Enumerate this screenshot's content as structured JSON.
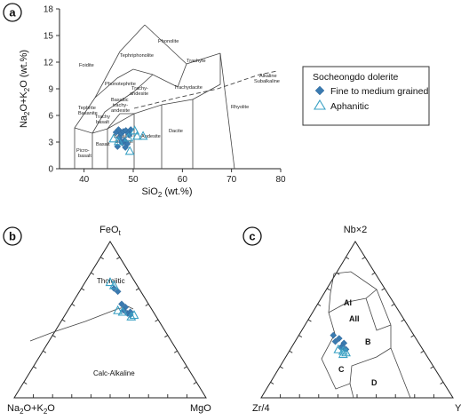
{
  "panels": {
    "a": {
      "badge": "a"
    },
    "b": {
      "badge": "b"
    },
    "c": {
      "badge": "c"
    }
  },
  "legend": {
    "title": "Socheongdo dolerite",
    "items": [
      {
        "label": "Fine to medium grained",
        "marker": "diamond",
        "color": "#3a7ab0"
      },
      {
        "label": "Aphanitic",
        "marker": "open-triangle",
        "color": "#3aa1c4"
      }
    ]
  },
  "tas": {
    "fields": {
      "foidite": "Foidite",
      "phonolite": "Phonolite",
      "tephriphonolite": "Tephriphonolite",
      "phonotephrite": "Phonotephrite",
      "trachyte": "Trachyte",
      "tephrite_1": "Tephrite",
      "tephrite_2": "Basanite",
      "trachyandesite_1": "Trachy-",
      "trachyandesite_2": "andesite",
      "trachydacite": "Trachydacite",
      "basaltic_ta_1": "Basaltic",
      "basaltic_ta_2": "trachy-",
      "basaltic_ta_3": "andesite",
      "trachybasalt_1": "Trachy",
      "trachybasalt_2": "basalt",
      "rhyolite": "Rhyolite",
      "picrobasalt_1": "Picro-",
      "picrobasalt_2": "basalt",
      "basalt": "Basalt",
      "basaltic_andesite_1": "Basaltic-",
      "basaltic_andesite_2": "andesite",
      "andesite": "Andesite",
      "dacite": "Dacite",
      "alkaline": "Alkaline",
      "subalkaline": "Subalkaline"
    }
  },
  "afm": {
    "tholeiitic": "Tholeiitic",
    "calc_alkaline": "Calc-Alkaline"
  },
  "meschede": {
    "AI": "AI",
    "AII": "AII",
    "B": "B",
    "C": "C",
    "D": "D"
  },
  "chart_data": [
    {
      "type": "scatter",
      "title": "",
      "xlabel": "SiO2 (wt.%)",
      "ylabel": "Na2O+K2O (wt.%)",
      "xlim": [
        35,
        80
      ],
      "ylim": [
        0,
        18
      ],
      "xticks": [
        40,
        50,
        60,
        70,
        80
      ],
      "yticks": [
        0,
        3,
        6,
        9,
        12,
        15,
        18
      ],
      "series": [
        {
          "name": "Fine to medium grained",
          "marker": "diamond",
          "x": [
            46.5,
            47.0,
            47.5,
            48.0,
            48.5,
            49.0,
            49.5,
            47.2,
            48.2,
            49.2,
            48.8,
            46.8,
            47.8,
            48.4,
            47.6
          ],
          "y": [
            4.1,
            4.4,
            3.9,
            4.2,
            4.3,
            4.0,
            4.4,
            3.5,
            3.2,
            3.8,
            2.8,
            2.5,
            2.9,
            2.4,
            3.0
          ]
        },
        {
          "name": "Aphanitic",
          "marker": "open-triangle",
          "x": [
            46.0,
            47.0,
            49.0,
            50.3,
            50.8,
            52.0,
            49.3
          ],
          "y": [
            3.4,
            3.1,
            3.5,
            4.3,
            3.7,
            3.7,
            2.0
          ]
        }
      ]
    },
    {
      "type": "scatter",
      "title": "",
      "ternary": true,
      "apices": {
        "top": "FeOt",
        "left": "Na2O+K2O",
        "right": "MgO"
      },
      "series": [
        {
          "name": "Fine to medium grained",
          "marker": "diamond",
          "top": [
            0.7,
            0.68,
            0.6,
            0.58,
            0.56,
            0.54,
            0.55,
            0.53
          ],
          "left": [
            0.13,
            0.12,
            0.14,
            0.13,
            0.15,
            0.14,
            0.12,
            0.13
          ]
        },
        {
          "name": "Aphanitic",
          "marker": "open-triangle",
          "top": [
            0.74,
            0.72,
            0.56,
            0.52,
            0.53,
            0.55
          ],
          "left": [
            0.13,
            0.12,
            0.18,
            0.13,
            0.11,
            0.16
          ]
        }
      ]
    },
    {
      "type": "scatter",
      "title": "",
      "ternary": true,
      "apices": {
        "top": "Nb×2",
        "left": "Zr/4",
        "right": "Y"
      },
      "series": [
        {
          "name": "Fine to medium grained",
          "marker": "diamond",
          "top": [
            0.4,
            0.38,
            0.36,
            0.35,
            0.33,
            0.32,
            0.31
          ],
          "left": [
            0.42,
            0.4,
            0.43,
            0.39,
            0.41,
            0.42,
            0.4
          ]
        },
        {
          "name": "Aphanitic",
          "marker": "open-triangle",
          "top": [
            0.31,
            0.3,
            0.29,
            0.28
          ],
          "left": [
            0.44,
            0.42,
            0.41,
            0.43
          ]
        }
      ]
    }
  ]
}
